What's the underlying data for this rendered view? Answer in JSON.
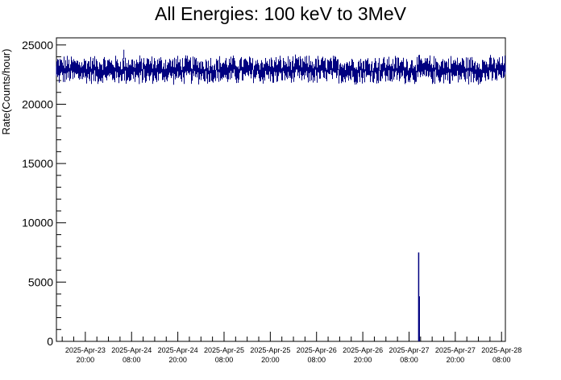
{
  "chart_data": {
    "type": "line",
    "title": "All Energies:  100 keV to 3MeV",
    "xlabel": "",
    "ylabel": "Rate(Counts/hour)",
    "x_range": [
      "2025-04-23 12:30",
      "2025-04-28 09:00"
    ],
    "ylim": [
      0,
      25600
    ],
    "y_ticks": [
      0,
      5000,
      10000,
      15000,
      20000,
      25000
    ],
    "x_ticks": [
      {
        "date": "2025-Apr-23",
        "time": "20:00"
      },
      {
        "date": "2025-Apr-24",
        "time": "08:00"
      },
      {
        "date": "2025-Apr-24",
        "time": "20:00"
      },
      {
        "date": "2025-Apr-25",
        "time": "08:00"
      },
      {
        "date": "2025-Apr-25",
        "time": "20:00"
      },
      {
        "date": "2025-Apr-26",
        "time": "08:00"
      },
      {
        "date": "2025-Apr-26",
        "time": "20:00"
      },
      {
        "date": "2025-Apr-27",
        "time": "08:00"
      },
      {
        "date": "2025-Apr-27",
        "time": "20:00"
      },
      {
        "date": "2025-Apr-28",
        "time": "08:00"
      }
    ],
    "series": [
      {
        "color": "#000080",
        "baseline_mean": 22900,
        "baseline_spread": 700,
        "points": [
          {
            "x": "2025-04-23 12:30",
            "y": 22800
          },
          {
            "x": "2025-04-24 06:00",
            "y": 24200
          },
          {
            "x": "2025-04-24 10:00",
            "y": 22100
          },
          {
            "x": "2025-04-25 00:00",
            "y": 23000
          },
          {
            "x": "2025-04-26 00:00",
            "y": 22900
          },
          {
            "x": "2025-04-27 00:00",
            "y": 23100
          },
          {
            "x": "2025-04-27 10:30",
            "y": 7500
          },
          {
            "x": "2025-04-27 10:40",
            "y": 3800
          },
          {
            "x": "2025-04-28 09:00",
            "y": 22900
          }
        ]
      }
    ],
    "grid": false,
    "legend": "none"
  }
}
